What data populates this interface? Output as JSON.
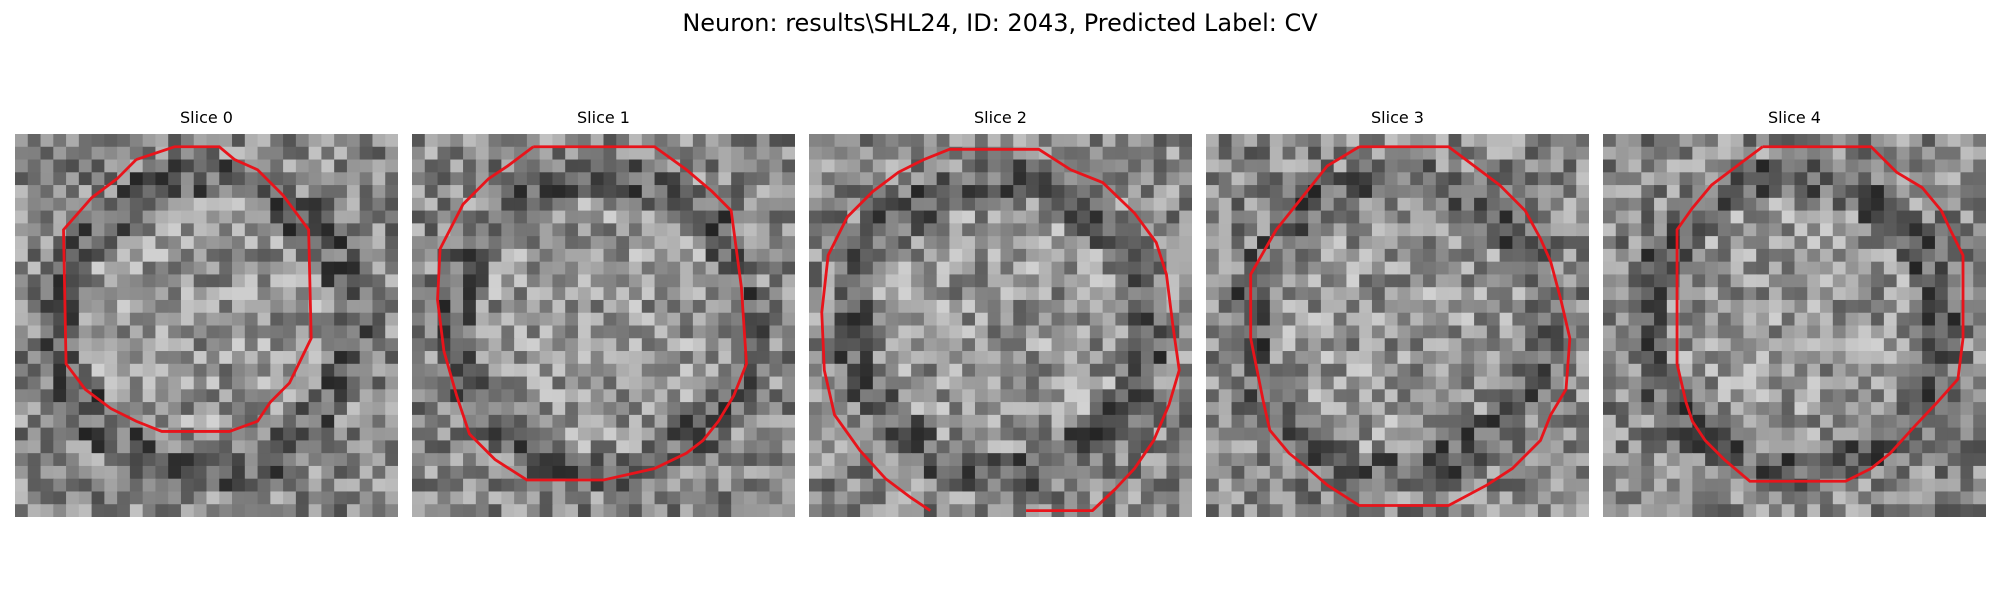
{
  "figure": {
    "title": "Neuron: results\\SHL24, ID: 2043, Predicted Label: CV"
  },
  "colors": {
    "contour": "#e8141b",
    "background": "#ffffff"
  },
  "slices": [
    {
      "title": "Slice 0"
    },
    {
      "title": "Slice 1"
    },
    {
      "title": "Slice 2"
    },
    {
      "title": "Slice 3"
    },
    {
      "title": "Slice 4"
    }
  ]
}
